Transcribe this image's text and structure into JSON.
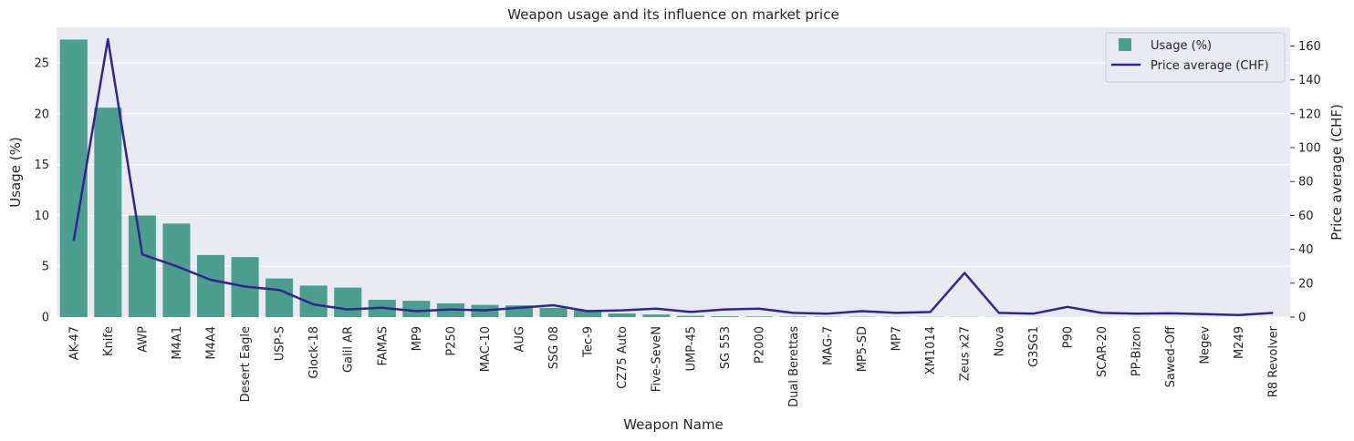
{
  "chart_data": {
    "type": "bar+line",
    "title": "Weapon usage and its influence on market price",
    "xlabel": "Weapon Name",
    "ylabel": "Usage (%)",
    "y2label": "Price average (CHF)",
    "ylim": [
      0,
      28.5
    ],
    "y2lim": [
      0,
      171
    ],
    "yticks": [
      0,
      5,
      10,
      15,
      20,
      25
    ],
    "y2ticks": [
      0,
      20,
      40,
      60,
      80,
      100,
      120,
      140,
      160
    ],
    "grid": true,
    "legend_position": "top-right",
    "categories": [
      "AK-47",
      "Knife",
      "AWP",
      "M4A1",
      "M4A4",
      "Desert Eagle",
      "USP-S",
      "Glock-18",
      "Galil AR",
      "FAMAS",
      "MP9",
      "P250",
      "MAC-10",
      "AUG",
      "SSG 08",
      "Tec-9",
      "CZ75 Auto",
      "Five-SeveN",
      "UMP-45",
      "SG 553",
      "P2000",
      "Dual Berettas",
      "MAG-7",
      "MP5-SD",
      "MP7",
      "XM1014",
      "Zeus x27",
      "Nova",
      "G3SG1",
      "P90",
      "SCAR-20",
      "PP-Bizon",
      "Sawed-Off",
      "Negev",
      "M249",
      "R8 Revolver"
    ],
    "series": [
      {
        "name": "Usage (%)",
        "type": "bar",
        "axis": "left",
        "color": "#4c9e8f",
        "values": [
          27.3,
          20.6,
          10.0,
          9.2,
          6.1,
          5.9,
          3.8,
          3.1,
          2.9,
          1.7,
          1.6,
          1.35,
          1.2,
          1.15,
          0.9,
          0.7,
          0.35,
          0.25,
          0.12,
          0.08,
          0.06,
          0.04,
          0.03,
          0.03,
          0.02,
          0.02,
          0.02,
          0.015,
          0.01,
          0.01,
          0.01,
          0.01,
          0.008,
          0.005,
          0.005,
          0.005
        ]
      },
      {
        "name": "Price average (CHF)",
        "type": "line",
        "axis": "right",
        "color": "#32258f",
        "values": [
          45,
          164,
          37,
          30,
          22,
          18,
          16,
          7.5,
          4.5,
          5.5,
          3.5,
          4.5,
          4,
          5.5,
          7,
          3.5,
          4,
          5,
          3,
          4.5,
          5,
          2.5,
          2,
          3.5,
          2.5,
          3,
          26,
          2.5,
          2,
          6,
          2.5,
          2,
          2.2,
          1.8,
          1.2,
          2.5
        ]
      }
    ]
  }
}
